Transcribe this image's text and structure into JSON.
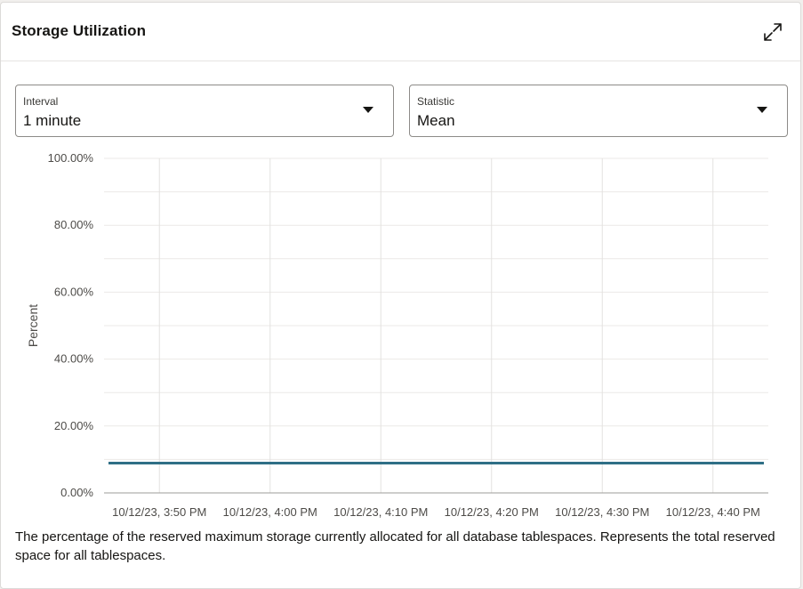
{
  "panel": {
    "title": "Storage Utilization",
    "expand_icon": "expand-icon"
  },
  "filters": {
    "interval": {
      "label": "Interval",
      "value": "1 minute"
    },
    "statistic": {
      "label": "Statistic",
      "value": "Mean"
    }
  },
  "chart_data": {
    "type": "line",
    "ylabel": "Percent",
    "xlabel": "",
    "ylim": [
      0,
      100
    ],
    "y_ticks": [
      "0.00%",
      "20.00%",
      "40.00%",
      "60.00%",
      "80.00%",
      "100.00%"
    ],
    "x_ticks": [
      "10/12/23, 3:50 PM",
      "10/12/23, 4:00 PM",
      "10/12/23, 4:10 PM",
      "10/12/23, 4:20 PM",
      "10/12/23, 4:30 PM",
      "10/12/23, 4:40 PM"
    ],
    "x_range": [
      "10/12/23, 3:45 PM",
      "10/12/23, 4:45 PM"
    ],
    "grid": true,
    "series": [
      {
        "color": "#2f6f86",
        "x": [
          "10/12/23, 3:45 PM",
          "10/12/23, 4:45 PM"
        ],
        "values": [
          8.9,
          8.9
        ]
      }
    ]
  },
  "description": "The percentage of the reserved maximum storage currently allocated for all database tablespaces. Represents the total reserved space for all tablespaces."
}
